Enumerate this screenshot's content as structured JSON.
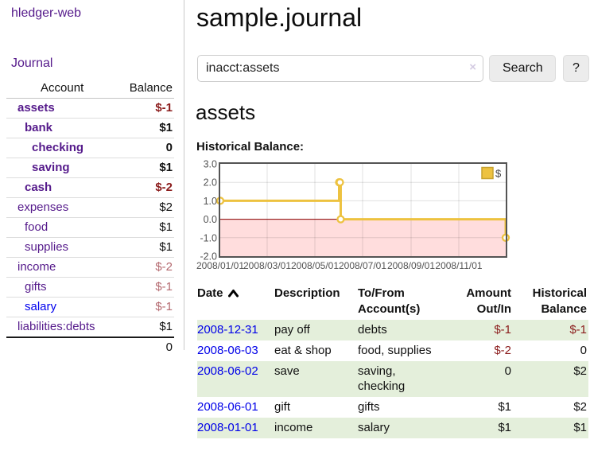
{
  "colors": {
    "purple_link": "#551a8b",
    "blue_link": "#0000ee",
    "negative_strong": "#8b1c1c",
    "negative_soft": "#b4696f",
    "row_stripe_green": "#e4efdb",
    "series_gold": "#edc240",
    "negative_area_pink": "#ffdddd",
    "zero_line_red": "#8b0000",
    "axis_text": "#545454"
  },
  "sidebar": {
    "brand": "hledger-web",
    "journal_link": "Journal",
    "accounts": {
      "headers": {
        "account": "Account",
        "balance": "Balance"
      },
      "rows": [
        {
          "name": "assets",
          "indent": 1,
          "bold": true,
          "balance": "$-1",
          "negative": true
        },
        {
          "name": "bank",
          "indent": 2,
          "bold": true,
          "balance": "$1",
          "negative": false
        },
        {
          "name": "checking",
          "indent": 3,
          "bold": true,
          "balance": "0",
          "negative": false
        },
        {
          "name": "saving",
          "indent": 3,
          "bold": true,
          "balance": "$1",
          "negative": false
        },
        {
          "name": "cash",
          "indent": 2,
          "bold": true,
          "balance": "$-2",
          "negative": true
        },
        {
          "name": "expenses",
          "indent": 1,
          "bold": false,
          "balance": "$2",
          "negative": false
        },
        {
          "name": "food",
          "indent": 2,
          "bold": false,
          "balance": "$1",
          "negative": false
        },
        {
          "name": "supplies",
          "indent": 2,
          "bold": false,
          "balance": "$1",
          "negative": false
        },
        {
          "name": "income",
          "indent": 1,
          "bold": false,
          "balance": "$-2",
          "negative": true
        },
        {
          "name": "gifts",
          "indent": 2,
          "bold": false,
          "balance": "$-1",
          "negative": true
        },
        {
          "name": "salary",
          "indent": 2,
          "bold": false,
          "balance": "$-1",
          "negative": true,
          "link_color": "blue"
        },
        {
          "name": "liabilities:debts",
          "indent": 1,
          "bold": false,
          "balance": "$1",
          "negative": false
        }
      ],
      "total": "0"
    }
  },
  "main": {
    "title": "sample.journal",
    "search": {
      "value": "inacct:assets",
      "clear_icon": "×",
      "search_button": "Search",
      "help_button": "?"
    },
    "account_heading": "assets",
    "chart_title": "Historical Balance:",
    "chart_data": {
      "type": "line",
      "step": true,
      "title": "Historical Balance",
      "series": [
        {
          "name": "$",
          "color": "#edc240",
          "points": [
            [
              "2008-01-01",
              1
            ],
            [
              "2008-06-01",
              2
            ],
            [
              "2008-06-02",
              2
            ],
            [
              "2008-06-03",
              0
            ],
            [
              "2008-12-31",
              -1
            ]
          ]
        }
      ],
      "xlim": [
        "2008-01-01",
        "2008-12-31"
      ],
      "ylim": [
        -2,
        3
      ],
      "yticks": [
        "3.0",
        "2.0",
        "1.0",
        "0.0",
        "-1.0",
        "-2.0"
      ],
      "xticks": [
        "2008/01/01",
        "2008/03/01",
        "2008/05/01",
        "2008/07/01",
        "2008/09/01",
        "2008/11/01"
      ],
      "legend": "$",
      "legend_position": "top-right",
      "grid": true,
      "negative_region": true,
      "negative_fill": "#ffdddd",
      "zero_line_color": "#8b0000"
    },
    "register": {
      "headers": [
        "Date",
        "Description",
        "To/From\nAccount(s)",
        "Amount\nOut/In",
        "Historical\nBalance"
      ],
      "rows": [
        {
          "date": "2008-12-31",
          "description": "pay off",
          "accounts": "debts",
          "amount": "$-1",
          "amount_negative": true,
          "balance": "$-1",
          "balance_negative": true
        },
        {
          "date": "2008-06-03",
          "description": "eat & shop",
          "accounts": "food, supplies",
          "amount": "$-2",
          "amount_negative": true,
          "balance": "0",
          "balance_negative": false
        },
        {
          "date": "2008-06-02",
          "description": "save",
          "accounts": "saving,\nchecking",
          "amount": "0",
          "amount_negative": false,
          "balance": "$2",
          "balance_negative": false
        },
        {
          "date": "2008-06-01",
          "description": "gift",
          "accounts": "gifts",
          "amount": "$1",
          "amount_negative": false,
          "balance": "$2",
          "balance_negative": false
        },
        {
          "date": "2008-01-01",
          "description": "income",
          "accounts": "salary",
          "amount": "$1",
          "amount_negative": false,
          "balance": "$1",
          "balance_negative": false
        }
      ]
    }
  }
}
